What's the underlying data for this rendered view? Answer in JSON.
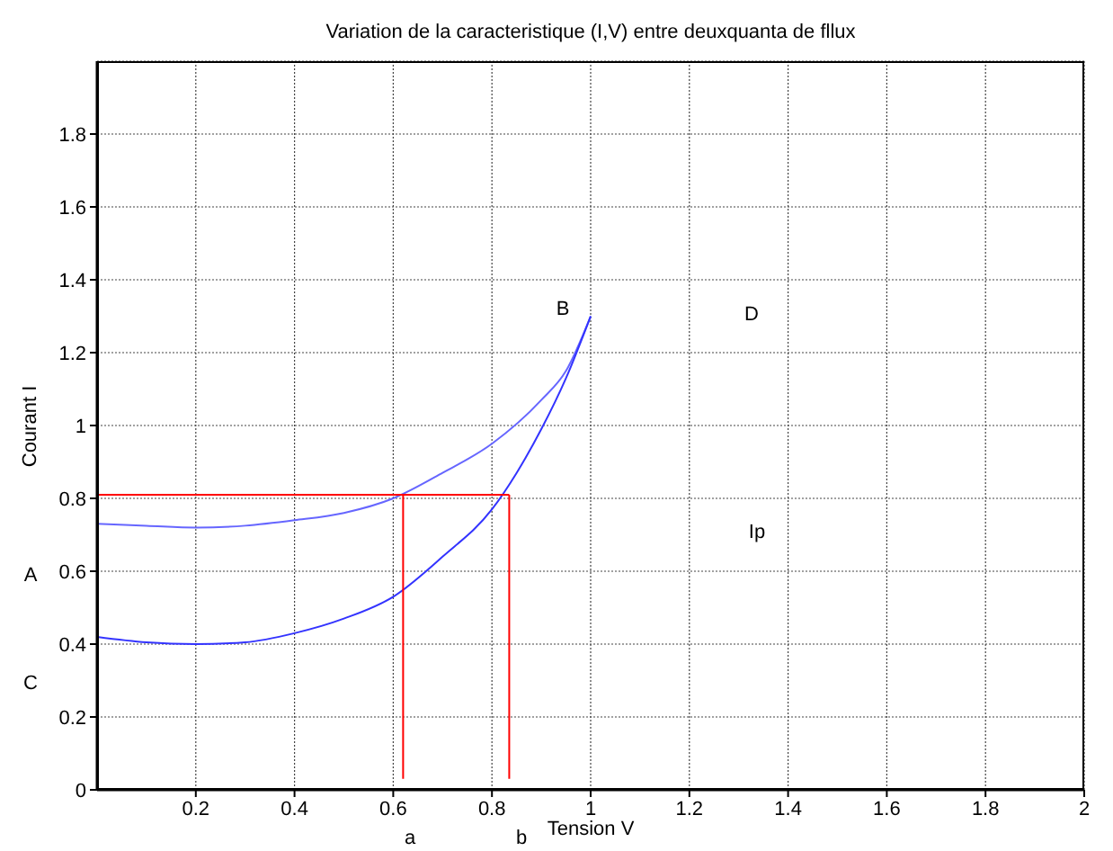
{
  "chart_data": {
    "type": "line",
    "title": "Variation de la caracteristique (I,V) entre deuxquanta de fllux",
    "xlabel": "Tension V",
    "ylabel": "Courant I",
    "xlim": [
      0,
      2
    ],
    "ylim": [
      0,
      2
    ],
    "xticks": [
      0.2,
      0.4,
      0.6,
      0.8,
      1,
      1.2,
      1.4,
      1.6,
      1.8,
      2
    ],
    "yticks": [
      0,
      0.2,
      0.4,
      0.6,
      0.8,
      1,
      1.2,
      1.4,
      1.6,
      1.8
    ],
    "grid": true,
    "legend": false,
    "marker": "none",
    "line_style": "solid",
    "series": [
      {
        "color": "#6666ff",
        "x": [
          0,
          0.1,
          0.2,
          0.3,
          0.4,
          0.5,
          0.6,
          0.7,
          0.8,
          0.9,
          0.95,
          1
        ],
        "values": [
          0.73,
          0.725,
          0.72,
          0.725,
          0.74,
          0.76,
          0.8,
          0.87,
          0.95,
          1.07,
          1.15,
          1.3
        ]
      },
      {
        "color": "#3333ff",
        "x": [
          0,
          0.1,
          0.2,
          0.3,
          0.4,
          0.5,
          0.6,
          0.7,
          0.8,
          0.85,
          0.9,
          0.95,
          1
        ],
        "values": [
          0.42,
          0.405,
          0.4,
          0.405,
          0.43,
          0.47,
          0.53,
          0.64,
          0.77,
          0.87,
          0.99,
          1.13,
          1.3
        ]
      },
      {
        "color": "#ff0000",
        "x": [
          0,
          0.835
        ],
        "values": [
          0.81,
          0.81
        ]
      },
      {
        "color": "#ff0000",
        "x": [
          0.62,
          0.62
        ],
        "values": [
          0.03,
          0.81
        ]
      },
      {
        "color": "#ff0000",
        "x": [
          0.835,
          0.835
        ],
        "values": [
          0.03,
          0.81
        ]
      }
    ],
    "annotations": [
      "B",
      "D",
      "Ip",
      "A",
      "C",
      "a",
      "b"
    ]
  }
}
